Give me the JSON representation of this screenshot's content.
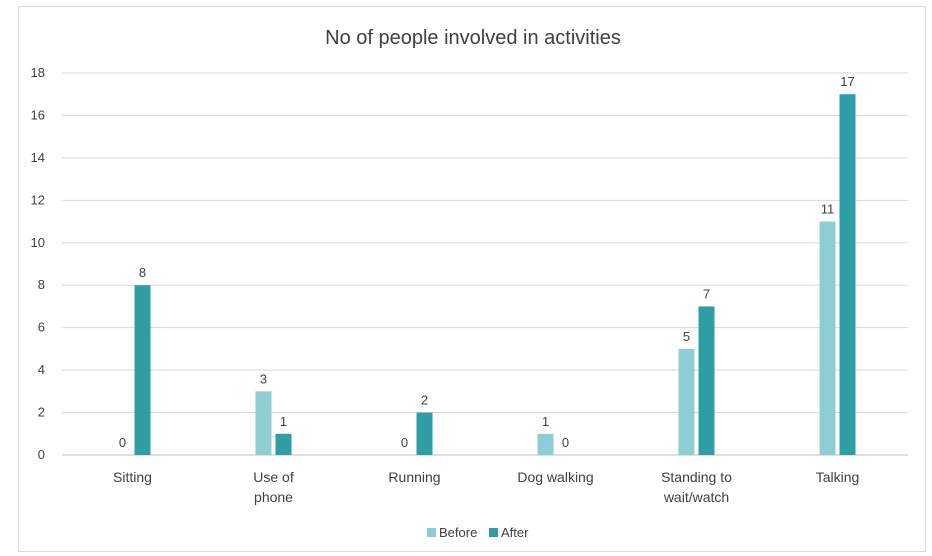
{
  "chart_data": {
    "type": "bar",
    "title": "No of people involved in activities",
    "categories": [
      [
        "Sitting"
      ],
      [
        "Use of",
        "phone"
      ],
      [
        "Running"
      ],
      [
        "Dog walking"
      ],
      [
        "Standing to",
        "wait/watch"
      ],
      [
        "Talking"
      ]
    ],
    "series": [
      {
        "name": "Before",
        "color": "#8ecdd3",
        "values": [
          0,
          3,
          0,
          1,
          5,
          11
        ]
      },
      {
        "name": "After",
        "color": "#2f9ea4",
        "values": [
          8,
          1,
          2,
          0,
          7,
          17
        ]
      }
    ],
    "ylim": [
      0,
      18
    ],
    "yticks": [
      0,
      2,
      4,
      6,
      8,
      10,
      12,
      14,
      16,
      18
    ],
    "grid": true,
    "legend_position": "bottom"
  }
}
